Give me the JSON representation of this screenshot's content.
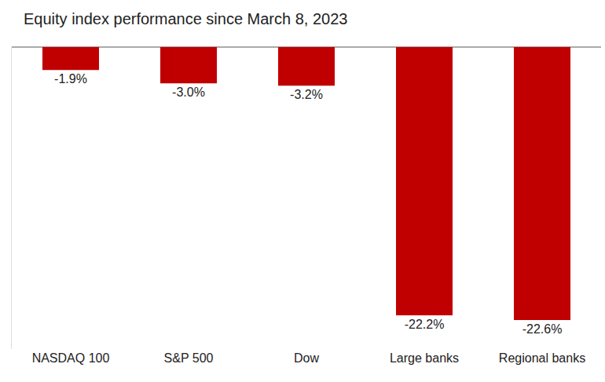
{
  "chart_data": {
    "type": "bar",
    "title": "Equity index performance since March 8, 2023",
    "categories": [
      "NASDAQ 100",
      "S&P 500",
      "Dow",
      "Large banks",
      "Regional banks"
    ],
    "values": [
      -1.9,
      -3.0,
      -3.2,
      -22.2,
      -22.6
    ],
    "value_labels": [
      "-1.9%",
      "-3.0%",
      "-3.2%",
      "-22.2%",
      "-22.6%"
    ],
    "color": "#c00000",
    "ylim": [
      -25,
      0
    ],
    "grid": false,
    "data_labels": true,
    "tick_labels": "x"
  }
}
